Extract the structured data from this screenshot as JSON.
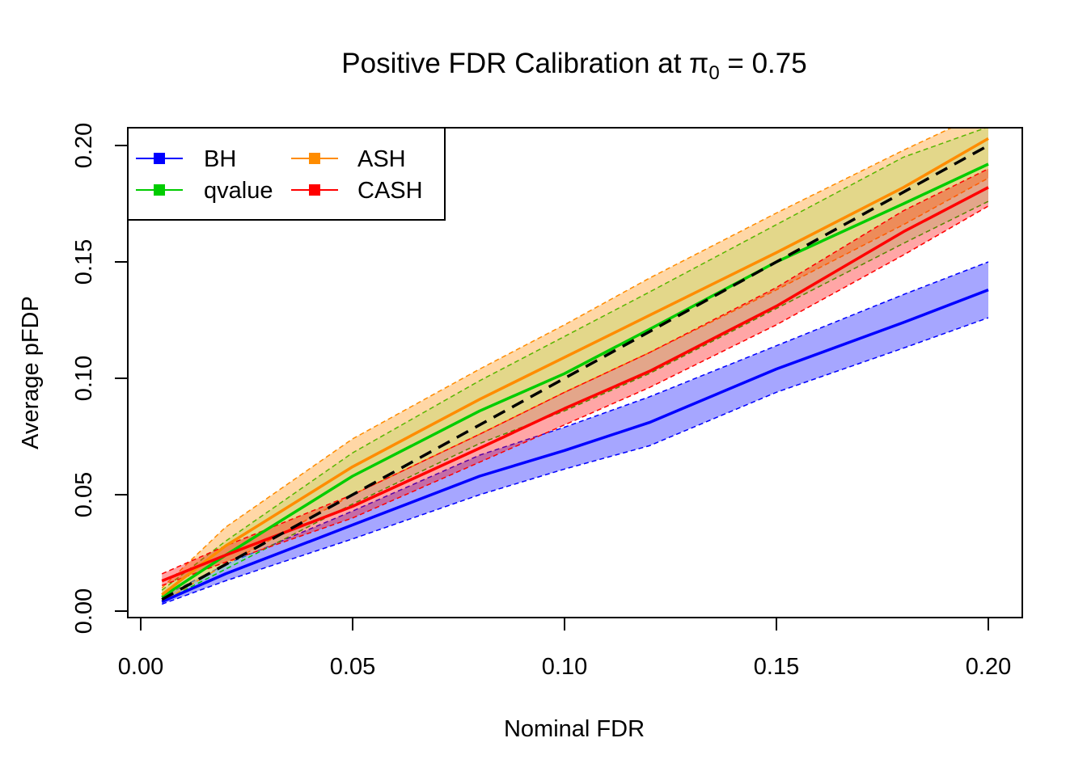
{
  "chart_data": {
    "type": "line",
    "title": "Positive FDR Calibration at π0 = 0.75",
    "title_main": "Positive FDR Calibration at ",
    "title_symbol": "π",
    "title_subscript": "0",
    "title_suffix": " = 0.75",
    "xlabel": "Nominal FDR",
    "ylabel": "Average pFDP",
    "xlim": [
      0.0,
      0.2
    ],
    "ylim": [
      0.0,
      0.2
    ],
    "x_ticks": [
      "0.00",
      "0.05",
      "0.10",
      "0.15",
      "0.20"
    ],
    "y_ticks": [
      "0.00",
      "0.05",
      "0.10",
      "0.15",
      "0.20"
    ],
    "grid": false,
    "legend_position": "top-left",
    "reference_line": {
      "style": "dashed",
      "color": "#000000",
      "points": [
        [
          0.005,
          0.005
        ],
        [
          0.2,
          0.2
        ]
      ]
    },
    "x": [
      0.005,
      0.02,
      0.05,
      0.08,
      0.1,
      0.12,
      0.15,
      0.18,
      0.2
    ],
    "series": [
      {
        "name": "BH",
        "color": "#0000ff",
        "fill": "#0000ff",
        "mean": [
          0.004,
          0.016,
          0.037,
          0.058,
          0.069,
          0.081,
          0.104,
          0.124,
          0.138
        ],
        "lower": [
          0.003,
          0.013,
          0.031,
          0.05,
          0.061,
          0.071,
          0.094,
          0.113,
          0.126
        ],
        "upper": [
          0.006,
          0.02,
          0.043,
          0.067,
          0.079,
          0.092,
          0.114,
          0.136,
          0.15
        ]
      },
      {
        "name": "qvalue",
        "color": "#00cc00",
        "fill": "#88ff88",
        "mean": [
          0.006,
          0.024,
          0.058,
          0.086,
          0.102,
          0.121,
          0.15,
          0.175,
          0.192
        ],
        "lower": [
          0.004,
          0.018,
          0.046,
          0.072,
          0.086,
          0.102,
          0.13,
          0.158,
          0.176
        ],
        "upper": [
          0.009,
          0.03,
          0.068,
          0.099,
          0.118,
          0.137,
          0.166,
          0.195,
          0.208
        ]
      },
      {
        "name": "ASH",
        "color": "#ff8c00",
        "fill": "#ff8c00",
        "mean": [
          0.007,
          0.028,
          0.062,
          0.091,
          0.109,
          0.127,
          0.154,
          0.182,
          0.203
        ],
        "lower": [
          0.004,
          0.02,
          0.05,
          0.076,
          0.094,
          0.111,
          0.138,
          0.166,
          0.186
        ],
        "upper": [
          0.01,
          0.036,
          0.074,
          0.104,
          0.123,
          0.143,
          0.171,
          0.198,
          0.215
        ]
      },
      {
        "name": "CASH",
        "color": "#ff0000",
        "fill": "#ff0000",
        "mean": [
          0.013,
          0.024,
          0.045,
          0.07,
          0.087,
          0.103,
          0.131,
          0.163,
          0.182
        ],
        "lower": [
          0.011,
          0.021,
          0.04,
          0.064,
          0.08,
          0.096,
          0.123,
          0.153,
          0.174
        ],
        "upper": [
          0.016,
          0.028,
          0.05,
          0.076,
          0.094,
          0.111,
          0.139,
          0.172,
          0.19
        ]
      }
    ]
  }
}
